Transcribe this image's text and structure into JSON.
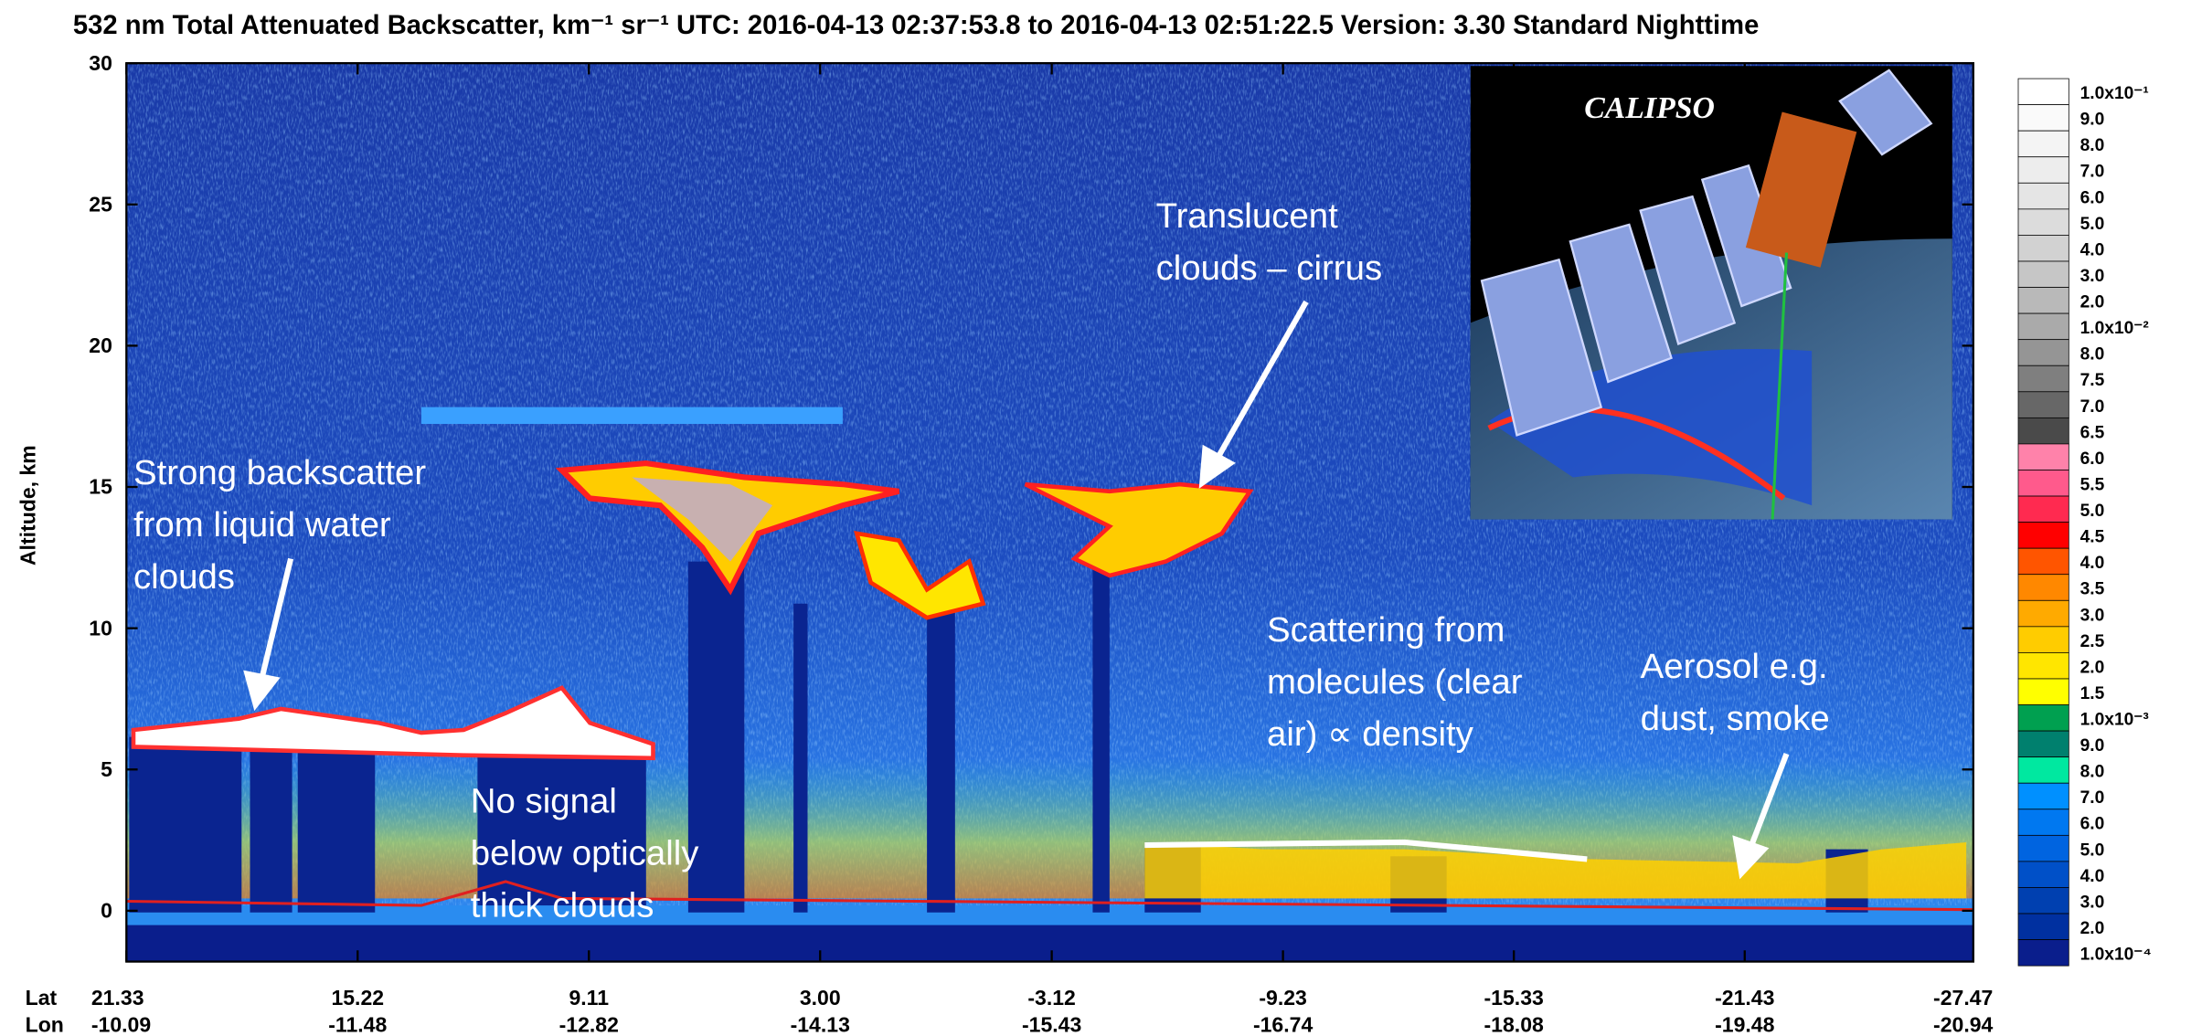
{
  "chart_data": {
    "type": "curtain",
    "title": "532 nm Total Attenuated Backscatter, km⁻¹ sr⁻¹     UTC:  2016-04-13 02:37:53.8  to  2016-04-13 02:51:22.5     Version: 3.30  Standard  Nighttime",
    "ylabel": "Altitude, km",
    "ylim": [
      -1.8,
      30
    ],
    "yticks": [
      0,
      5,
      10,
      15,
      20,
      25,
      30
    ],
    "xlim": [
      21.33,
      -27.47
    ],
    "xtick_row_labels": [
      "Lat",
      "Lon"
    ],
    "xticks": [
      {
        "value": 21.33,
        "label": "21.33"
      },
      {
        "value": 15.22,
        "label": "15.22"
      },
      {
        "value": 9.11,
        "label": "9.11"
      },
      {
        "value": 3.0,
        "label": "3.00"
      },
      {
        "value": -3.12,
        "label": "-3.12"
      },
      {
        "value": -9.23,
        "label": "-9.23"
      },
      {
        "value": -15.33,
        "label": "-15.33"
      },
      {
        "value": -21.43,
        "label": "-21.43"
      },
      {
        "value": -27.47,
        "label": "-27.47"
      }
    ],
    "xtick_lon_labels": [
      "-10.09",
      "-11.48",
      "-12.82",
      "-14.13",
      "-15.43",
      "-16.74",
      "-18.08",
      "-19.48",
      "-20.94"
    ],
    "colorbar": {
      "labels": [
        "1.0x10⁻¹",
        "9.0",
        "8.0",
        "7.0",
        "6.0",
        "5.0",
        "4.0",
        "3.0",
        "2.0",
        "1.0x10⁻²",
        "8.0",
        "7.5",
        "7.0",
        "6.5",
        "6.0",
        "5.5",
        "5.0",
        "4.5",
        "4.0",
        "3.5",
        "3.0",
        "2.5",
        "2.0",
        "1.5",
        "1.0x10⁻³",
        "9.0",
        "8.0",
        "7.0",
        "6.0",
        "5.0",
        "4.0",
        "3.0",
        "2.0",
        "1.0x10⁻⁴"
      ],
      "colors": [
        "#ffffff",
        "#fafafa",
        "#f4f4f4",
        "#ededed",
        "#e5e5e5",
        "#dcdcdc",
        "#d2d2d2",
        "#c6c6c6",
        "#b9b9b9",
        "#aaaaaa",
        "#959595",
        "#7f7f7f",
        "#676767",
        "#4a4a4a",
        "#ff82aa",
        "#ff5a8c",
        "#ff2a50",
        "#ff0000",
        "#ff5500",
        "#ff8800",
        "#ffaa00",
        "#ffcc00",
        "#ffe600",
        "#ffff00",
        "#00a050",
        "#00806e",
        "#00e8a0",
        "#0090ff",
        "#0078f0",
        "#0064e0",
        "#0050c8",
        "#0040b0",
        "#0030a0",
        "#0a1e8c"
      ]
    },
    "inset_label": "CALIPSO",
    "annotations": [
      {
        "lines": [
          "Translucent",
          "clouds – cirrus"
        ]
      },
      {
        "lines": [
          "Strong backscatter",
          "from liquid water",
          "clouds"
        ]
      },
      {
        "lines": [
          "Scattering from",
          "molecules (clear",
          "air) ∝ density"
        ]
      },
      {
        "lines": [
          "Aerosol e.g.",
          "dust, smoke"
        ]
      },
      {
        "lines": [
          "No signal",
          "below optically",
          "thick clouds"
        ]
      }
    ]
  }
}
